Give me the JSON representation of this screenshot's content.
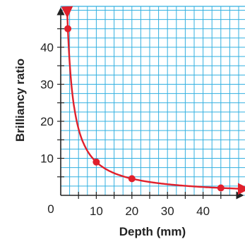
{
  "chart_data": {
    "type": "line",
    "xlabel": "Depth (mm)",
    "ylabel": "Brilliancy ratio",
    "xlim": [
      0,
      50
    ],
    "ylim": [
      0,
      50
    ],
    "grid": true,
    "origin_label": "0",
    "x_ticks": [
      10,
      20,
      30,
      40
    ],
    "y_ticks": [
      10,
      20,
      30,
      40
    ],
    "x_tick_labels": [
      "10",
      "20",
      "30",
      "40"
    ],
    "y_tick_labels": [
      "10",
      "20",
      "30",
      "40"
    ],
    "series": [
      {
        "points": [
          [
            2,
            45
          ],
          [
            10,
            9
          ],
          [
            20,
            4.5
          ],
          [
            45,
            2
          ]
        ],
        "curve": "y = 90 / x"
      }
    ],
    "colors": {
      "curve": "#e0202c",
      "grid": "#33b0e0",
      "axis": "#222222"
    }
  }
}
